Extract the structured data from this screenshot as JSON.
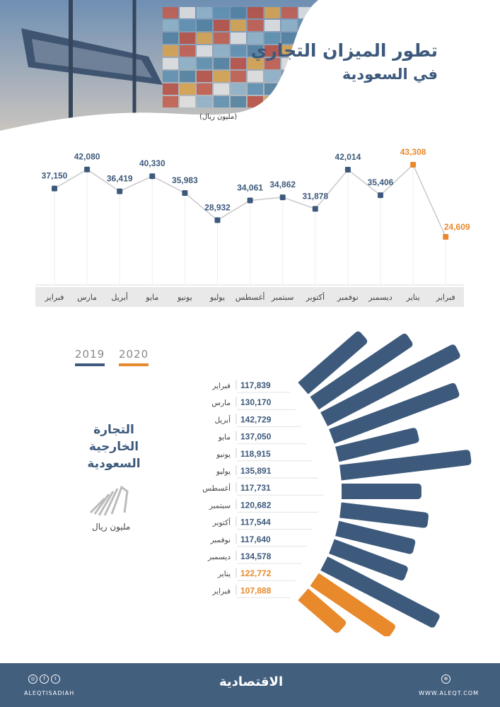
{
  "header": {
    "title_line1": "تطور الميزان التجاري",
    "title_line2": "في السعودية",
    "unit": "(مليون ريال)"
  },
  "colors": {
    "y2019": "#3d5a7c",
    "y2020": "#e8892b",
    "line": "#c8c8c8",
    "band": "#e9e9e9"
  },
  "chart_data": [
    {
      "type": "line",
      "title": "تطور الميزان التجاري في السعودية",
      "ylabel": "مليون ريال",
      "categories": [
        "فبراير",
        "مارس",
        "أبريل",
        "مايو",
        "يونيو",
        "يوليو",
        "أغسطس",
        "سبتمبر",
        "أكتوبر",
        "نوفمبر",
        "ديسمبر",
        "يناير",
        "فبراير"
      ],
      "values": [
        37150,
        42080,
        36419,
        40330,
        35983,
        28932,
        34061,
        34862,
        31878,
        42014,
        35406,
        43308,
        24609
      ],
      "labels": [
        "37,150",
        "42,080",
        "36,419",
        "40,330",
        "35,983",
        "28,932",
        "34,061",
        "34,862",
        "31,878",
        "42,014",
        "35,406",
        "43,308",
        "24,609"
      ],
      "years": [
        2019,
        2019,
        2019,
        2019,
        2019,
        2019,
        2019,
        2019,
        2019,
        2019,
        2019,
        2020,
        2020
      ]
    },
    {
      "type": "bar",
      "title": "التجارة الخارجية السعودية",
      "ylabel": "مليون ريال",
      "legend": [
        "2019",
        "2020"
      ],
      "categories": [
        "فبراير",
        "مارس",
        "أبريل",
        "مايو",
        "يونيو",
        "يوليو",
        "أغسطس",
        "سبتمبر",
        "أكتوبر",
        "نوفمبر",
        "ديسمبر",
        "يناير",
        "فبراير"
      ],
      "values": [
        117839,
        130170,
        142729,
        137050,
        118915,
        135891,
        117731,
        120682,
        117544,
        117640,
        134578,
        122772,
        107888
      ],
      "labels": [
        "117,839",
        "130,170",
        "142,729",
        "137,050",
        "118,915",
        "135,891",
        "117,731",
        "120,682",
        "117,544",
        "117,640",
        "134,578",
        "122,772",
        "107,888"
      ],
      "years": [
        2019,
        2019,
        2019,
        2019,
        2019,
        2019,
        2019,
        2019,
        2019,
        2019,
        2019,
        2020,
        2020
      ]
    }
  ],
  "trade": {
    "title_line1": "التجارة الخارجية",
    "title_line2": "السعودية",
    "unit": "مليون ريال",
    "legend_2019": "2019",
    "legend_2020": "2020"
  },
  "footer": {
    "handle": "ALEQTISADIAH",
    "logo": "الاقتصادية",
    "site": "WWW.ALEQT.COM"
  }
}
